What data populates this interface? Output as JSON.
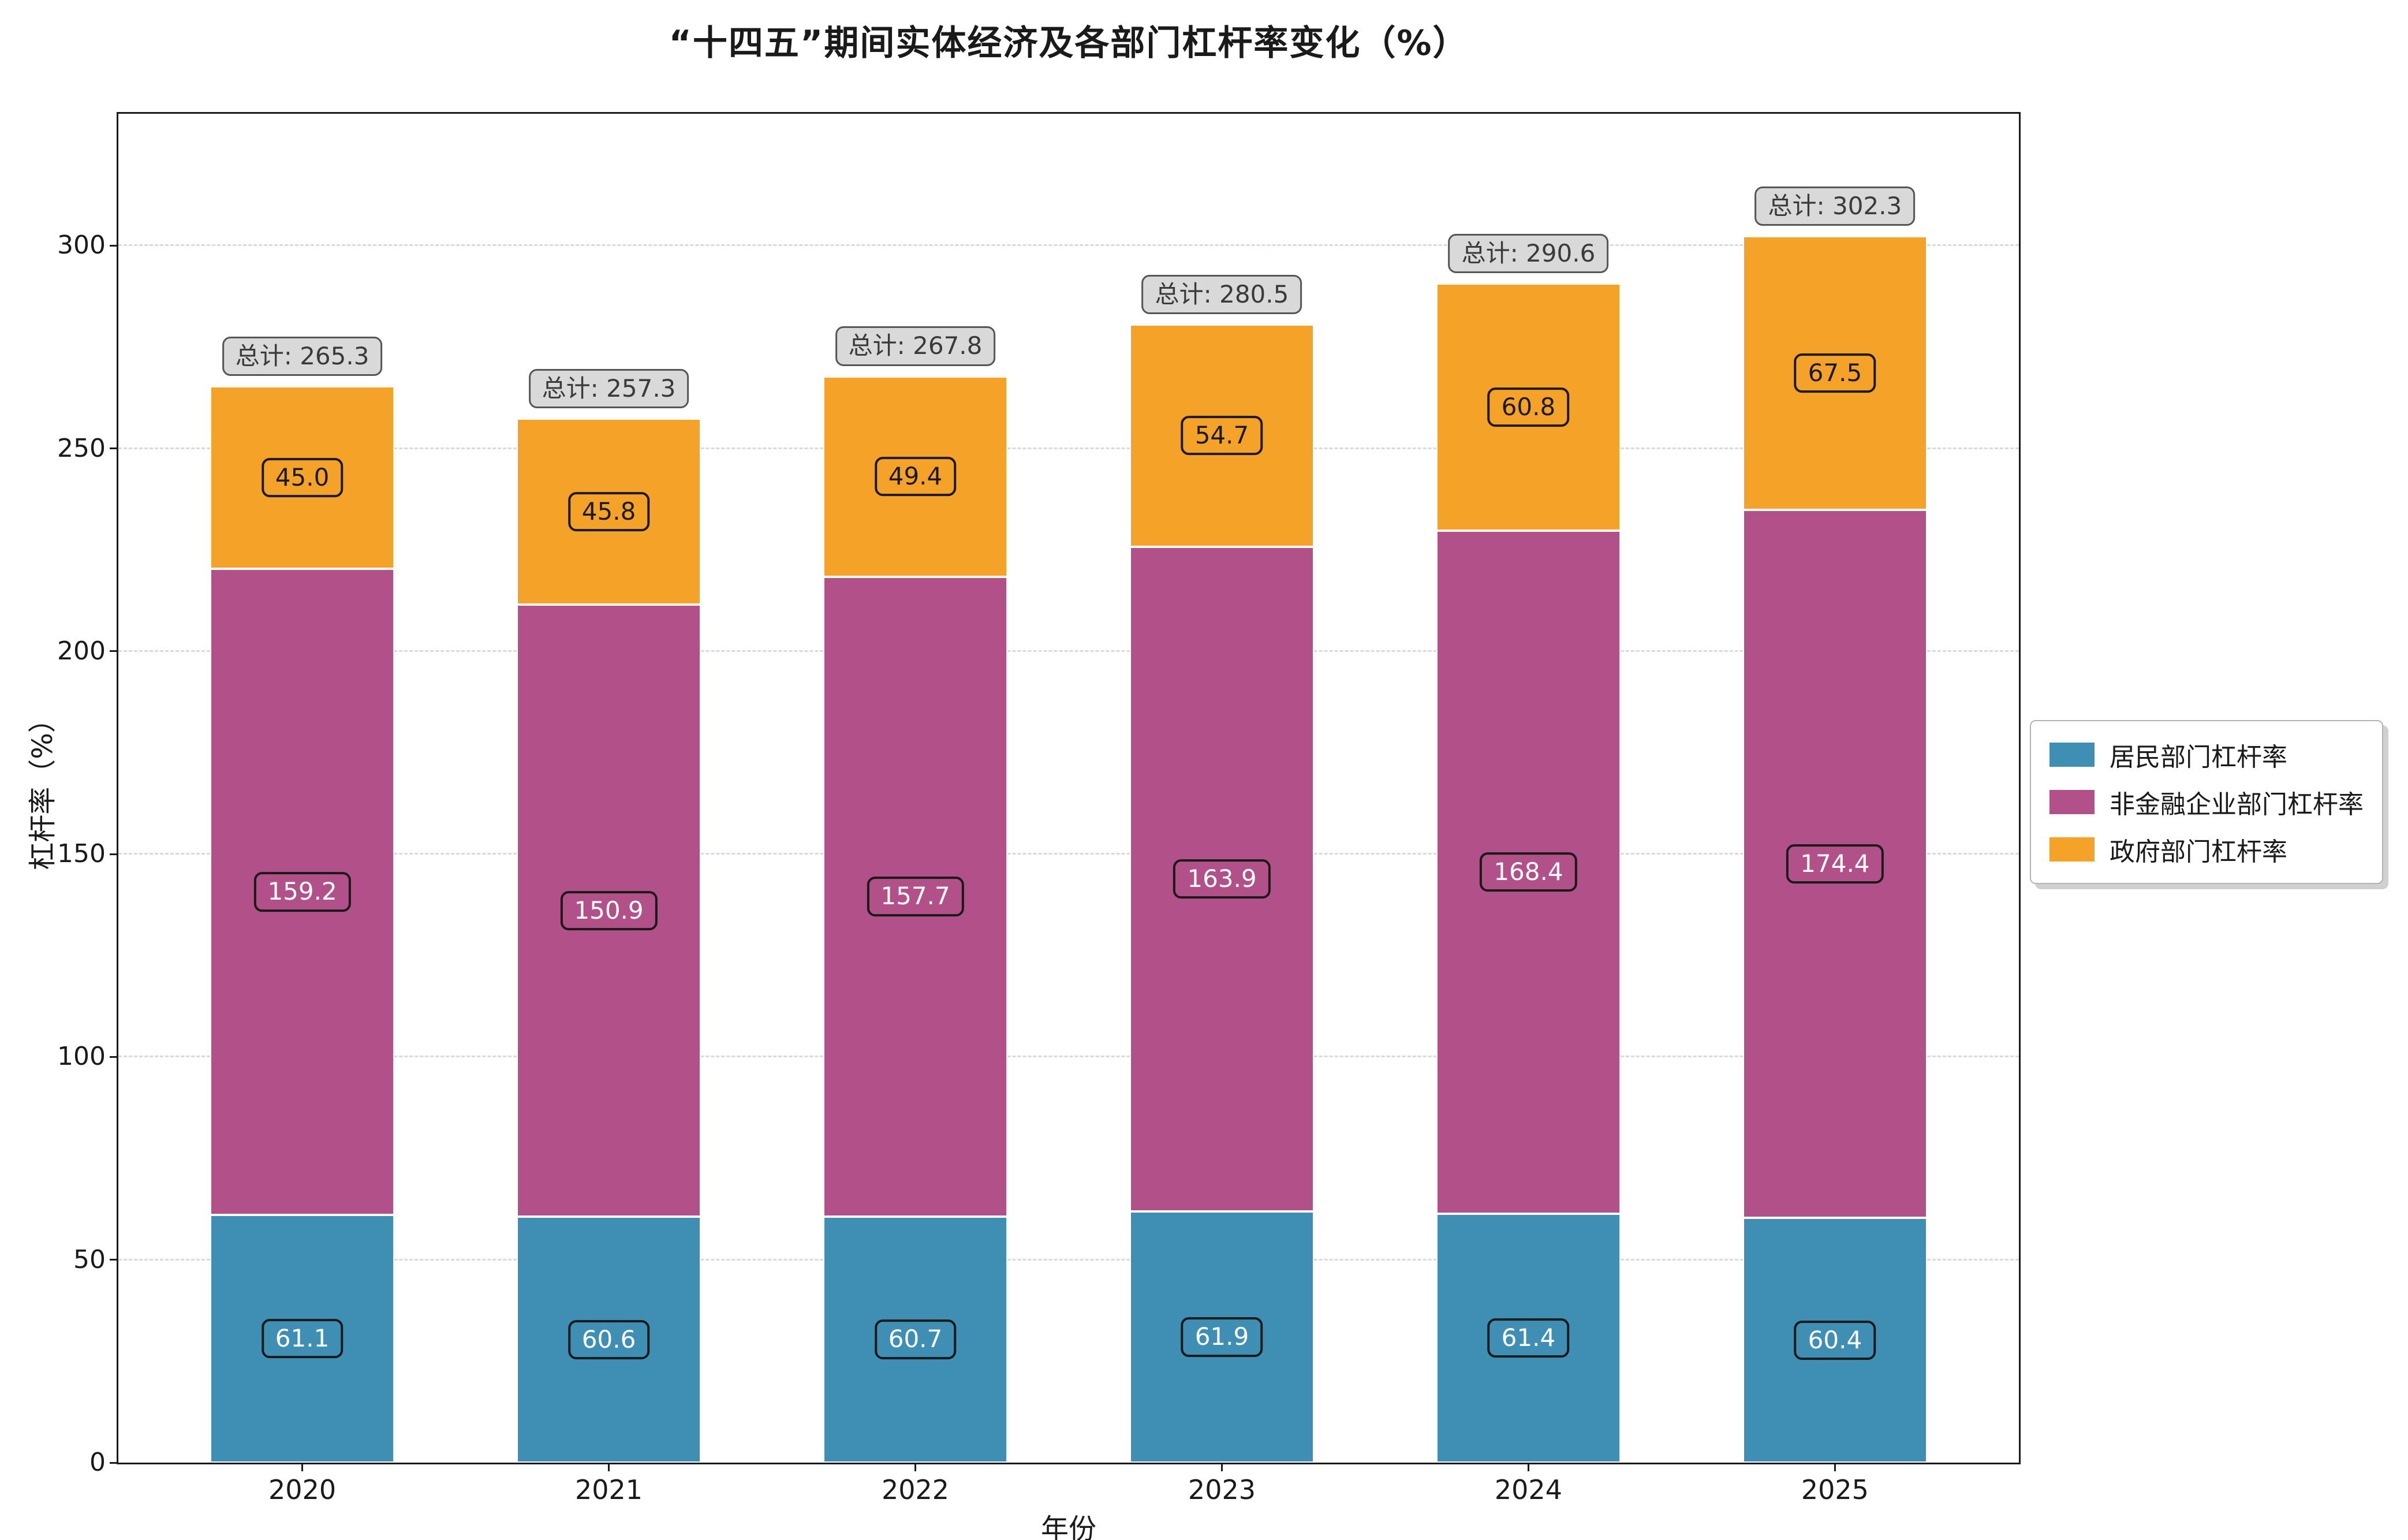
{
  "chart_data": {
    "type": "bar",
    "stacked": true,
    "title": "“十四五”期间实体经济及各部门杠杆率变化（%）",
    "xlabel": "年份",
    "ylabel": "杠杆率（%）",
    "categories": [
      "2020",
      "2021",
      "2022",
      "2023",
      "2024",
      "2025"
    ],
    "series": [
      {
        "name": "居民部门杠杆率",
        "color": "#3f8fb5",
        "label_text_color": "#ffffff",
        "values": [
          61.1,
          60.6,
          60.7,
          61.9,
          61.4,
          60.4
        ]
      },
      {
        "name": "非金融企业部门杠杆率",
        "color": "#b25189",
        "label_text_color": "#ffffff",
        "values": [
          159.2,
          150.9,
          157.7,
          163.9,
          168.4,
          174.4
        ]
      },
      {
        "name": "政府部门杠杆率",
        "color": "#f5a228",
        "label_text_color": "#1a1a1a",
        "values": [
          45.0,
          45.8,
          49.4,
          54.7,
          60.8,
          67.5
        ]
      }
    ],
    "totals": [
      265.3,
      257.3,
      267.8,
      280.5,
      290.6,
      302.3
    ],
    "total_label_prefix": "总计: ",
    "yticks": [
      0,
      50,
      100,
      150,
      200,
      250,
      300
    ],
    "ylim": [
      0,
      332.5
    ],
    "grid": "dashed-horizontal",
    "legend_position": "center-right-outside"
  }
}
